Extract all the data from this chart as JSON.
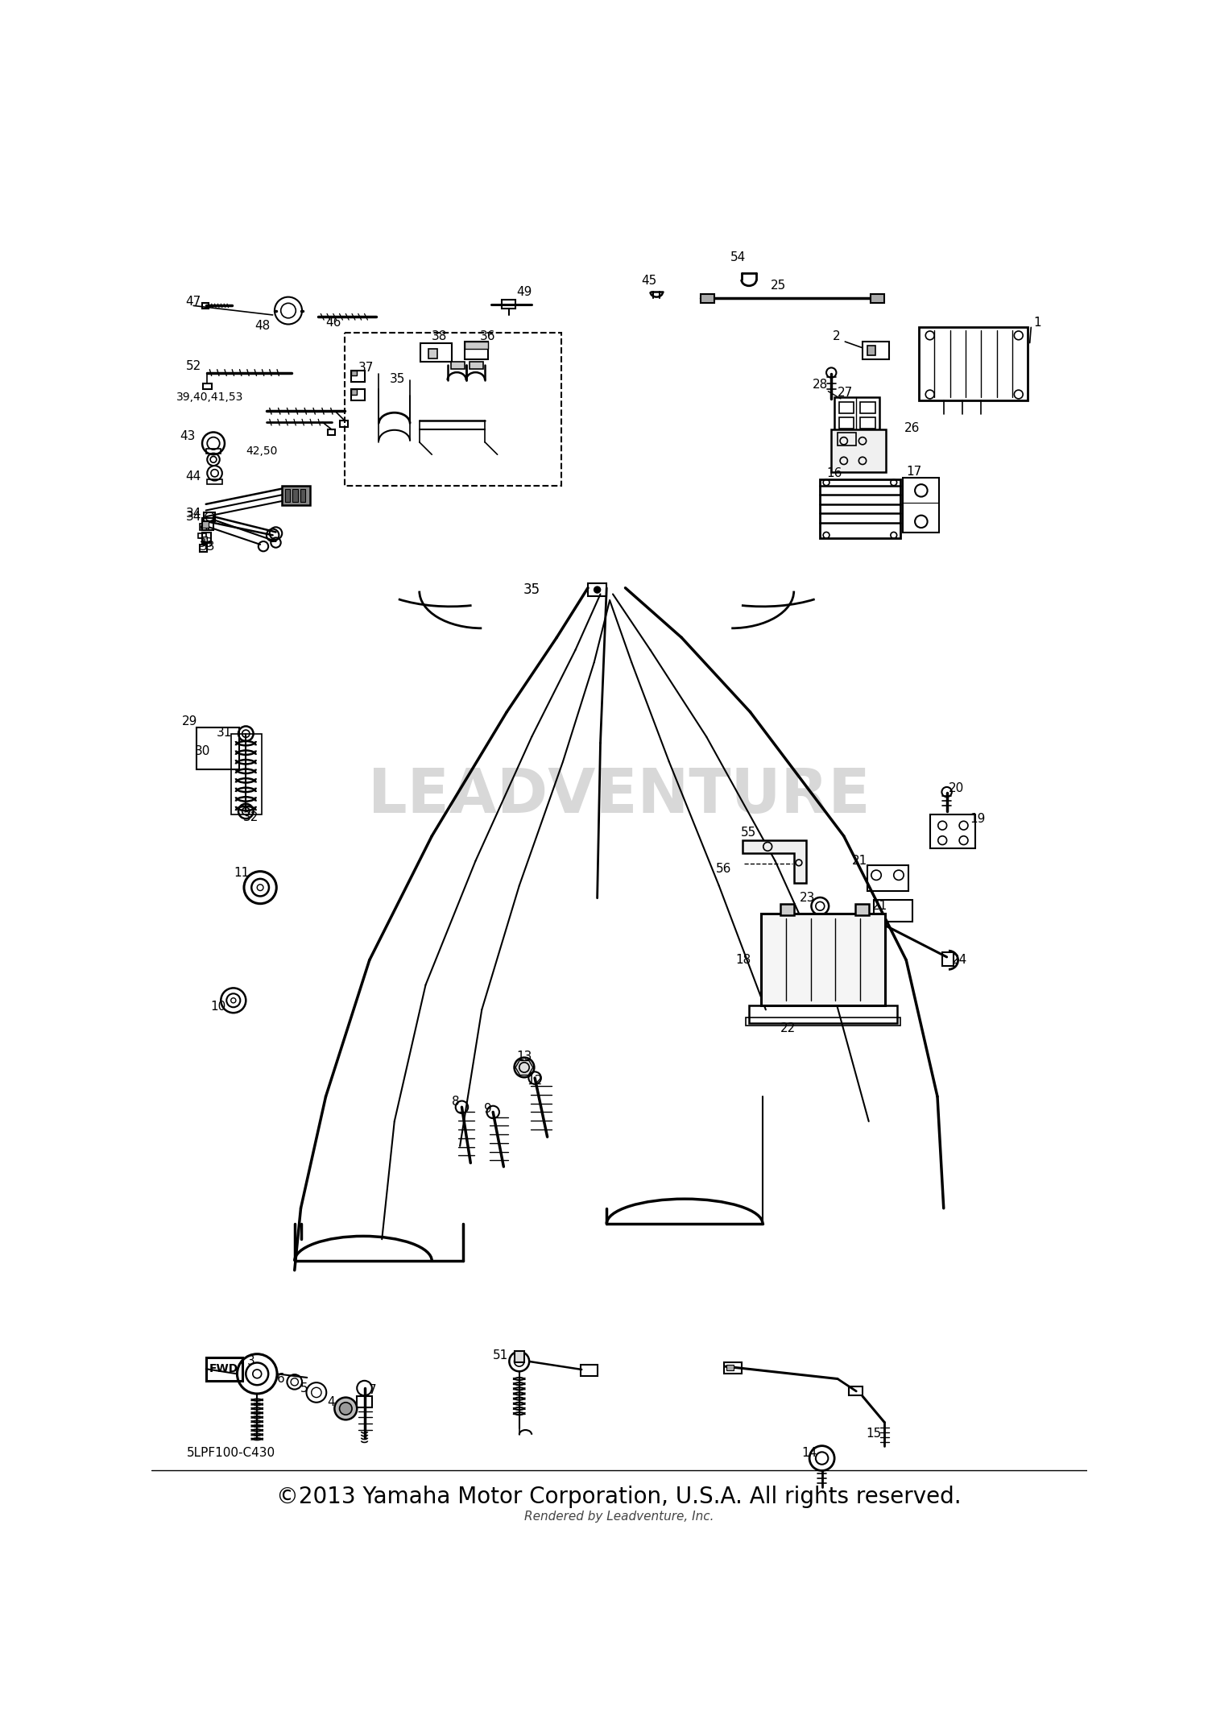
{
  "copyright": "©2013 Yamaha Motor Corporation, U.S.A. All rights reserved.",
  "rendered_by": "Rendered by Leadventure, Inc.",
  "diagram_code": "5LPF100-C430",
  "fig_width": 15.0,
  "fig_height": 21.35,
  "watermark": "LEADVENTURE"
}
